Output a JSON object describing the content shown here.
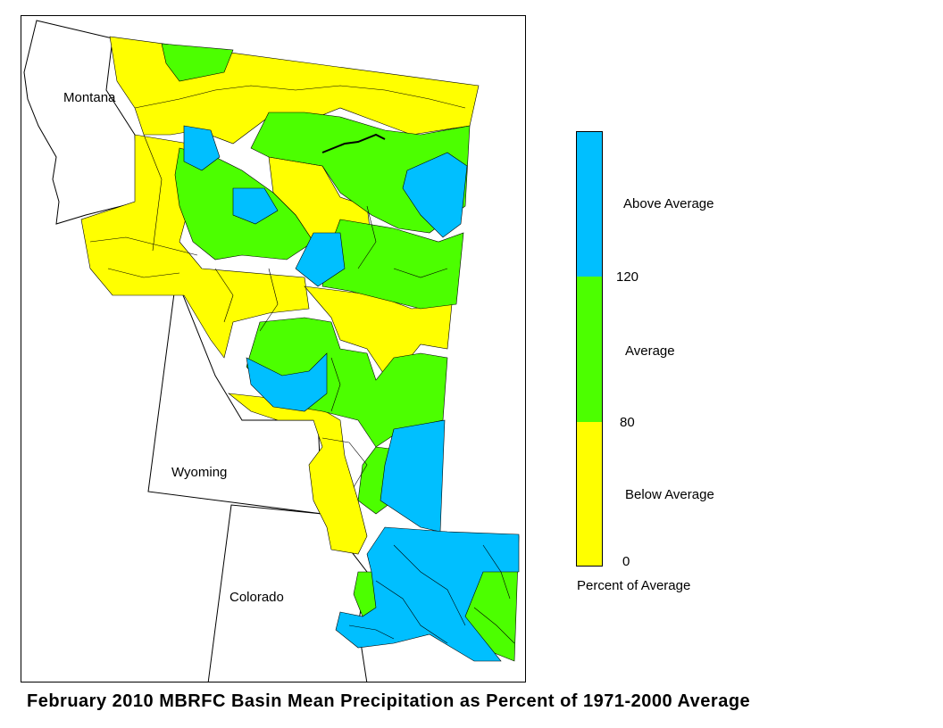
{
  "map": {
    "state_labels": {
      "montana": "Montana",
      "wyoming": "Wyoming",
      "colorado": "Colorado"
    }
  },
  "legend": {
    "categories": [
      {
        "label": "Above Average",
        "color": "#00bfff",
        "range": [
          120,
          null
        ]
      },
      {
        "label": "Average",
        "color": "#4cff00",
        "range": [
          80,
          120
        ]
      },
      {
        "label": "Below Average",
        "color": "#ffff00",
        "range": [
          0,
          80
        ]
      }
    ],
    "above_label": "Above Average",
    "average_label": "Average",
    "below_label": "Below Average",
    "tick_120": "120",
    "tick_80": "80",
    "tick_0": "0",
    "unit_label": "Percent of Average"
  },
  "caption": "February 2010 MBRFC Basin Mean Precipitation as Percent of 1971-2000 Average"
}
